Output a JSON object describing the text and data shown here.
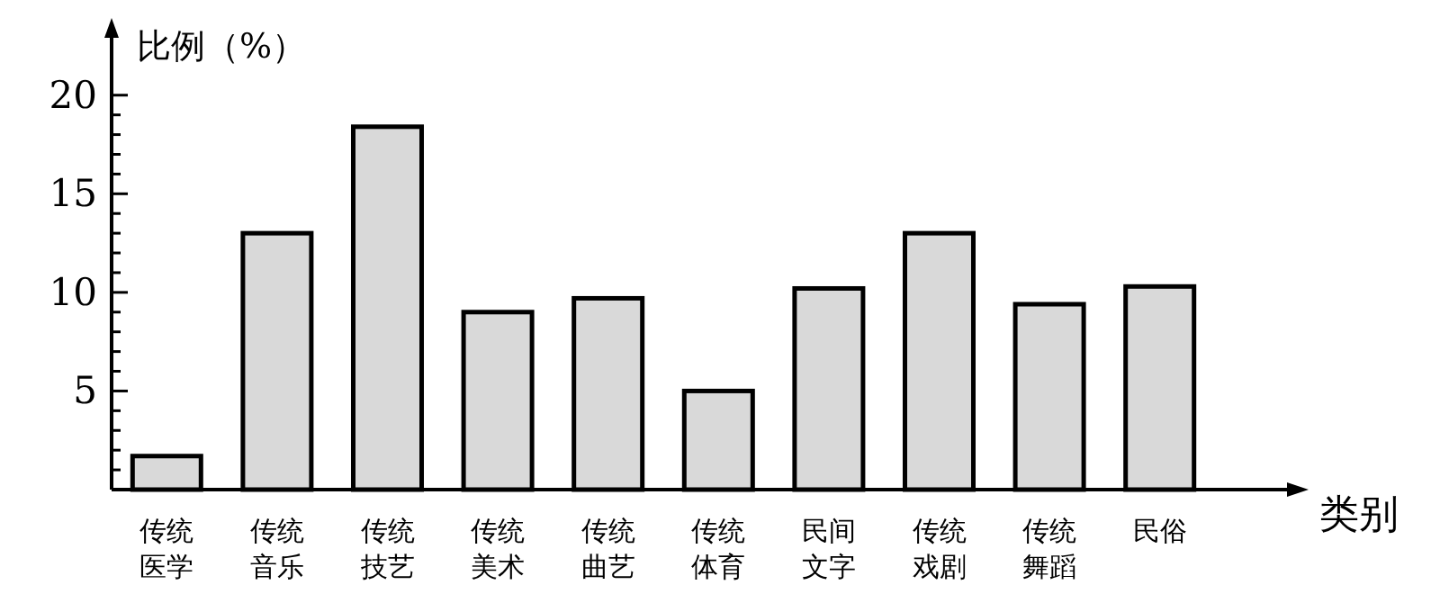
{
  "chart_data": {
    "type": "bar",
    "ylabel": "比例（%）",
    "xlabel": "类别",
    "categories": [
      "传统医学",
      "传统音乐",
      "传统技艺",
      "传统美术",
      "传统曲艺",
      "传统体育",
      "民间文字",
      "传统戏剧",
      "传统舞蹈",
      "民俗"
    ],
    "values": [
      1.7,
      13.0,
      18.4,
      9.0,
      9.7,
      5.0,
      10.2,
      13.0,
      9.4,
      10.3
    ],
    "color": "#d9d9d9",
    "ylim": [
      0,
      23
    ],
    "yticks": [
      {
        "value": 1,
        "label": null
      },
      {
        "value": 2,
        "label": null
      },
      {
        "value": 3,
        "label": null
      },
      {
        "value": 4,
        "label": null
      },
      5,
      {
        "value": 6,
        "label": null
      },
      {
        "value": 7,
        "label": null
      },
      {
        "value": 8,
        "label": null
      },
      {
        "value": 9,
        "label": null
      },
      10,
      {
        "value": 11,
        "label": null
      },
      {
        "value": 12,
        "label": null
      },
      {
        "value": 13,
        "label": null
      },
      {
        "value": 14,
        "label": null
      },
      15,
      {
        "value": 16,
        "label": null
      },
      {
        "value": 17,
        "label": null
      },
      {
        "value": 18,
        "label": null
      },
      {
        "value": 19,
        "label": null
      },
      20
    ],
    "grid": false
  }
}
